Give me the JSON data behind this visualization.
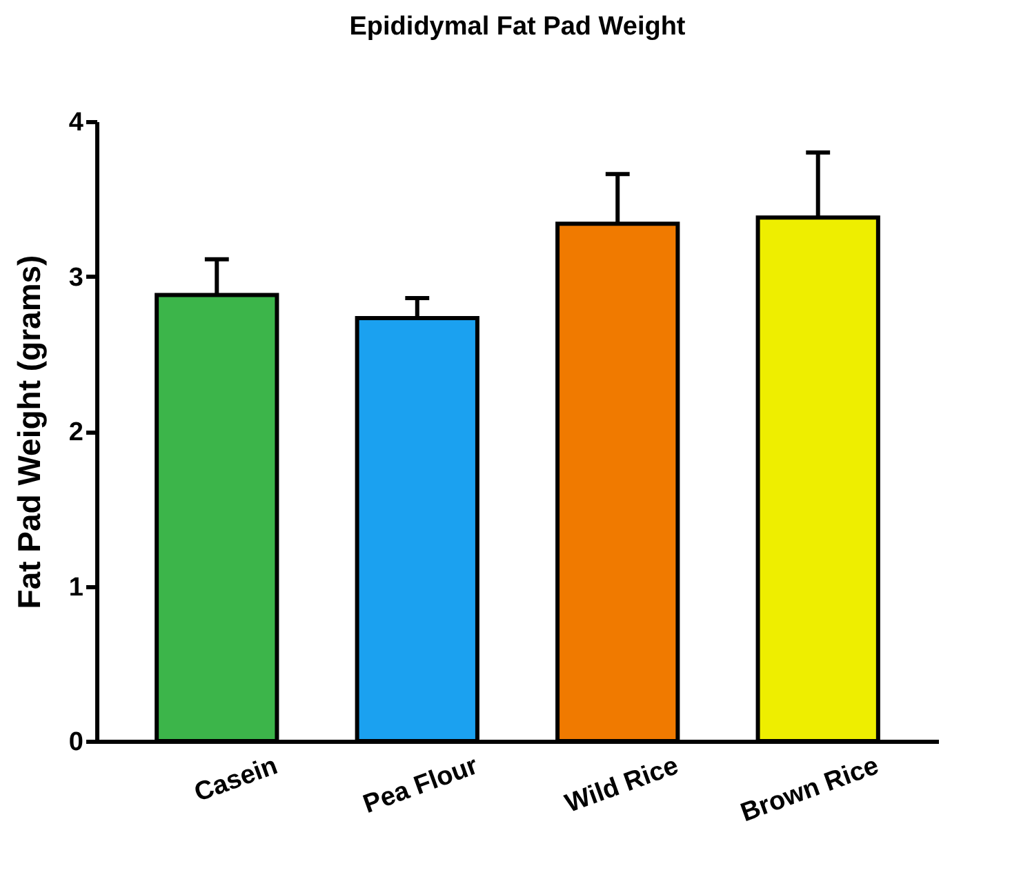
{
  "chart_data": {
    "type": "bar",
    "title": "Epididymal Fat Pad Weight",
    "ylabel": "Fat Pad Weight (grams)",
    "categories": [
      "Casein",
      "Pea Flour",
      "Wild Rice",
      "Brown Rice"
    ],
    "values": [
      2.88,
      2.73,
      3.34,
      3.38
    ],
    "colors": [
      "#3cb54a",
      "#1ba1f0",
      "#f07a00",
      "#eeee00"
    ],
    "errors": [
      [
        2.88,
        3.11
      ],
      [
        2.73,
        2.86
      ],
      [
        3.34,
        3.66
      ],
      [
        3.38,
        3.8
      ]
    ],
    "ylim": [
      0,
      4
    ],
    "yticks": [
      0,
      1,
      2,
      3,
      4
    ],
    "grid": false,
    "legend": false
  }
}
